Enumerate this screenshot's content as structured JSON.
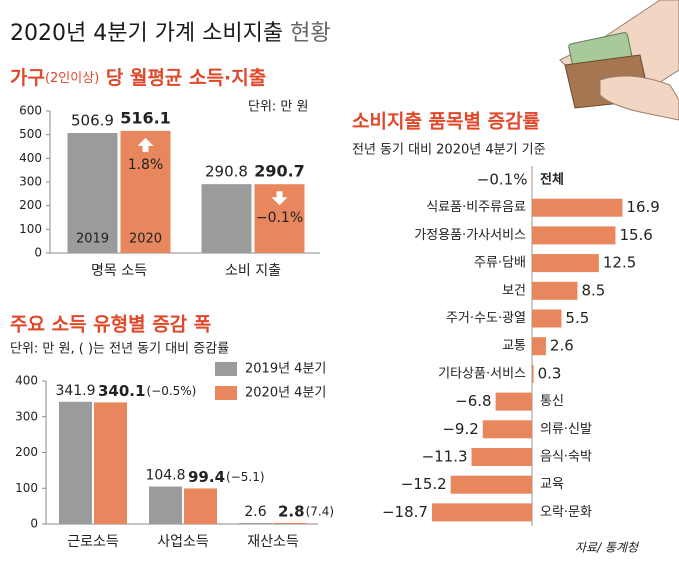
{
  "header": {
    "title": "2020년 4분기 가계 소비지출",
    "title_suffix": "현황"
  },
  "chart_data": [
    {
      "type": "bar",
      "title_parts": [
        "가구",
        "(2인이상)",
        " 당 월평균 소득·지출"
      ],
      "subtitle": "단위: 만 원",
      "categories": [
        "명목 소득",
        "소비 지출"
      ],
      "series": [
        {
          "name": "2019",
          "color": "#9b9b9b",
          "values": [
            506.9,
            290.8
          ]
        },
        {
          "name": "2020",
          "color": "#e8865d",
          "values": [
            516.1,
            290.7
          ]
        }
      ],
      "changes": {
        "values": [
          1.8,
          -0.1
        ],
        "value_labels": [
          "1.8%",
          "−0.1%"
        ]
      },
      "ylim": [
        0,
        600
      ],
      "yticks": [
        0,
        100,
        200,
        300,
        400,
        500,
        600
      ]
    },
    {
      "type": "bar",
      "title": "주요 소득 유형별 증감 폭",
      "subtitle": "단위: 만 원, ( )는 전년 동기 대비 증감률",
      "categories": [
        "근로소득",
        "사업소득",
        "재산소득"
      ],
      "series": [
        {
          "name": "2019년 4분기",
          "color": "#9b9b9b",
          "values": [
            341.9,
            104.8,
            2.6
          ]
        },
        {
          "name": "2020년 4분기",
          "color": "#e8865d",
          "values": [
            340.1,
            99.4,
            2.8
          ]
        }
      ],
      "changes": {
        "values": [
          -0.5,
          -5.1,
          7.4
        ],
        "value_labels": [
          "(−0.5%)",
          "(−5.1)",
          "(7.4)"
        ]
      },
      "legend": "top-right",
      "ylim": [
        0,
        400
      ],
      "yticks": [
        0,
        100,
        200,
        300,
        400
      ]
    },
    {
      "type": "hbar",
      "title": "소비지출 품목별 증감률",
      "subtitle": "전년 동기 대비 2020년 4분기 기준",
      "categories": [
        "전체",
        "식료품·비주류음료",
        "가정용품·가사서비스",
        "주류·담배",
        "보건",
        "주거·수도·광열",
        "교통",
        "기타상품·서비스",
        "통신",
        "의류·신발",
        "음식·숙박",
        "교육",
        "오락·문화"
      ],
      "values": [
        -0.1,
        16.9,
        15.6,
        12.5,
        8.5,
        5.5,
        2.6,
        0.3,
        -6.8,
        -9.2,
        -11.3,
        -15.2,
        -18.7
      ],
      "value_labels": [
        "−0.1%",
        "16.9",
        "15.6",
        "12.5",
        "8.5",
        "5.5",
        "2.6",
        "0.3",
        "−6.8",
        "−9.2",
        "−11.3",
        "−15.2",
        "−18.7"
      ],
      "color": "#e8865d",
      "xlim": [
        -20,
        20
      ]
    }
  ],
  "source": "자료/ 통계청"
}
